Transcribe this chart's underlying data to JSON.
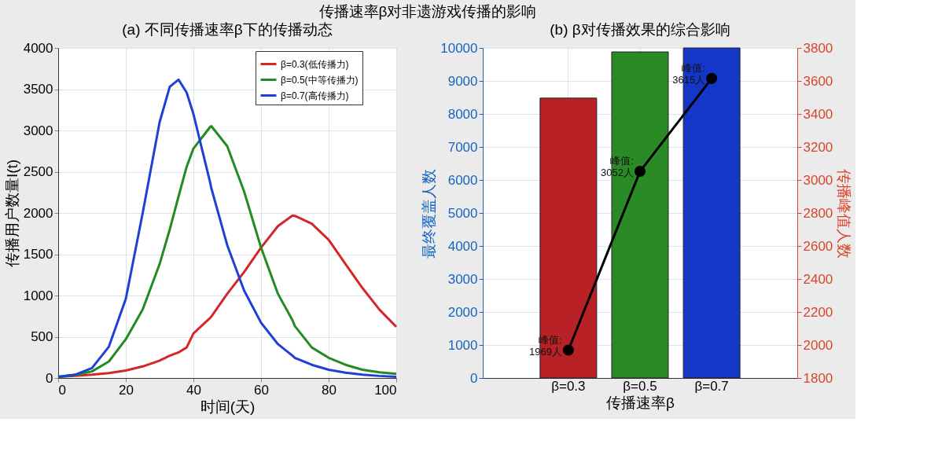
{
  "chart_data": [
    {
      "type": "line",
      "title": "传播速率β对非遗游戏传播的影响",
      "subtitle": "(a) 不同传播速率β下的传播动态",
      "xlabel": "时间(天)",
      "ylabel": "传播用户数量I(t)",
      "xlim": [
        0,
        100
      ],
      "xticks": [
        0,
        20,
        40,
        60,
        80,
        100
      ],
      "ylim": [
        0,
        4000
      ],
      "yticks": [
        0,
        500,
        1000,
        1500,
        2000,
        2500,
        3000,
        3500,
        4000
      ],
      "grid": true,
      "legend": "top right",
      "x": [
        0,
        5,
        10,
        15,
        20,
        25,
        30,
        33,
        35.6,
        38,
        40,
        45,
        45.3,
        50,
        55,
        60,
        65,
        69.3,
        70,
        75,
        80,
        85,
        90,
        95,
        100
      ],
      "series": [
        {
          "name": "β=0.3(低传播力)",
          "color": "#d62728",
          "values": [
            15,
            25,
            40,
            60,
            90,
            140,
            210,
            270,
            310,
            370,
            540,
            730,
            745,
            1020,
            1285,
            1580,
            1840,
            1969,
            1965,
            1870,
            1675,
            1380,
            1090,
            830,
            620
          ]
        },
        {
          "name": "β=0.5(中等传播力)",
          "color": "#228b22",
          "values": [
            15,
            35,
            80,
            200,
            470,
            830,
            1380,
            1800,
            2200,
            2560,
            2780,
            3045,
            3052,
            2810,
            2260,
            1580,
            1020,
            700,
            630,
            370,
            245,
            160,
            100,
            70,
            50
          ]
        },
        {
          "name": "β=0.7(高传播力)",
          "color": "#1f3fd6",
          "values": [
            15,
            40,
            120,
            380,
            960,
            2000,
            3100,
            3530,
            3615,
            3460,
            3200,
            2360,
            2300,
            1610,
            1060,
            670,
            410,
            270,
            245,
            160,
            100,
            65,
            40,
            25,
            15
          ]
        }
      ]
    },
    {
      "type": "bar",
      "title": "(b) β对传播效果的综合影响",
      "xlabel": "传播速率β",
      "ylabel": "最终覆盖人数",
      "y2label": "传播峰值人数",
      "categories": [
        "β=0.3",
        "β=0.5",
        "β=0.7"
      ],
      "ylim": [
        0,
        10000
      ],
      "yticks": [
        0,
        1000,
        2000,
        3000,
        4000,
        5000,
        6000,
        7000,
        8000,
        9000,
        10000
      ],
      "y2lim": [
        1800,
        3800
      ],
      "y2ticks": [
        1800,
        2000,
        2200,
        2400,
        2600,
        2800,
        3000,
        3200,
        3400,
        3600,
        3800
      ],
      "grid": true,
      "series": [
        {
          "type": "bar",
          "colors": [
            "#b82226",
            "#2a8a26",
            "#1437c8"
          ],
          "values": [
            8480,
            9880,
            10000
          ]
        },
        {
          "type": "line",
          "axis": "y2",
          "color": "#000000",
          "marker": "circle",
          "values": [
            1969,
            3052,
            3615
          ],
          "value_labels": [
            "峰值:\n1969人",
            "峰值:\n3052人",
            "峰值:\n3615人"
          ]
        }
      ]
    }
  ]
}
